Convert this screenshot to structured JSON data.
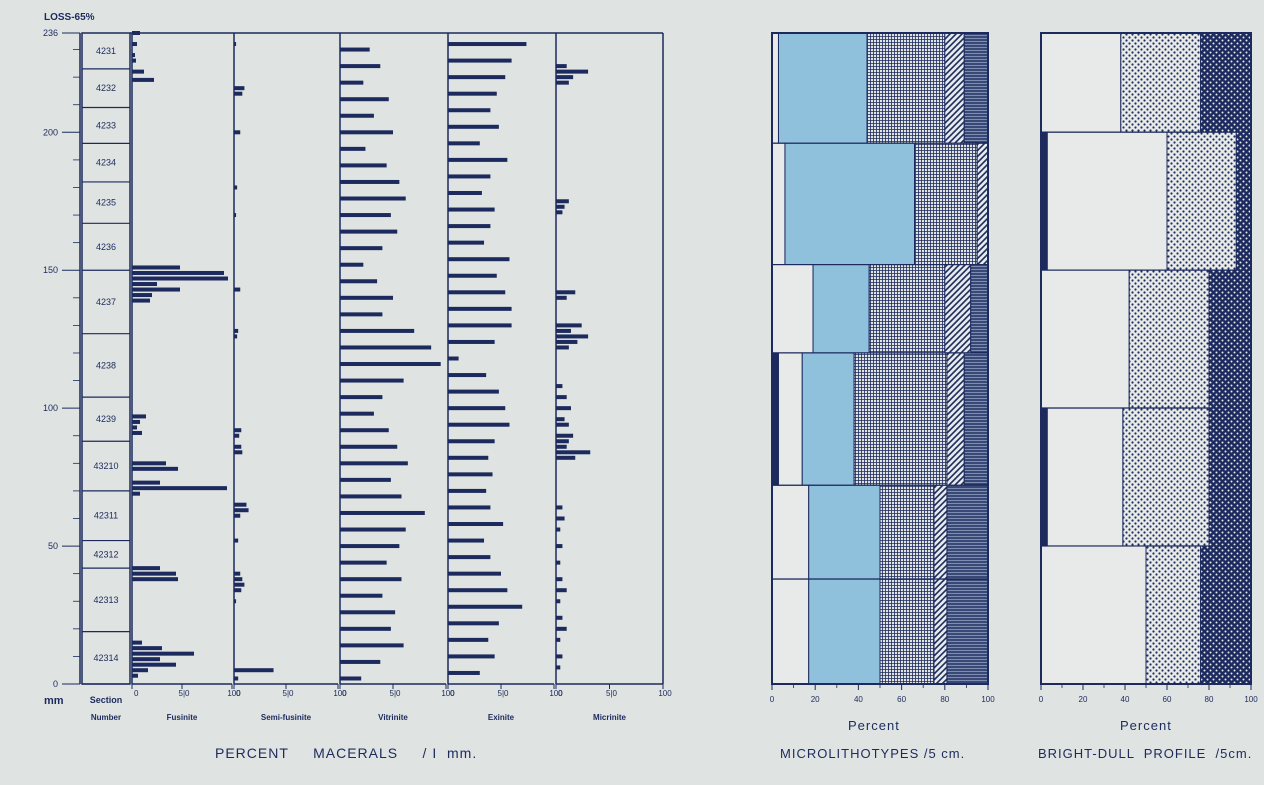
{
  "chart_data": {
    "type": "bar",
    "title": "",
    "header_label": "LOSS-65%",
    "depth_axis": {
      "unit": "mm",
      "min": 0,
      "max": 236,
      "ticks": [
        0,
        50,
        100,
        150,
        200,
        236
      ],
      "tick_labels": [
        "0",
        "50",
        "100",
        "150",
        "200",
        "236"
      ]
    },
    "section_column_label": [
      "Section",
      "Number"
    ],
    "sections": [
      {
        "id": "4231",
        "top": 236,
        "bottom": 223
      },
      {
        "id": "4232",
        "top": 223,
        "bottom": 209
      },
      {
        "id": "4233",
        "top": 209,
        "bottom": 196
      },
      {
        "id": "4234",
        "top": 196,
        "bottom": 182
      },
      {
        "id": "4235",
        "top": 182,
        "bottom": 167
      },
      {
        "id": "4236",
        "top": 167,
        "bottom": 150
      },
      {
        "id": "4237",
        "top": 150,
        "bottom": 127
      },
      {
        "id": "4238",
        "top": 127,
        "bottom": 104
      },
      {
        "id": "4239",
        "top": 104,
        "bottom": 88
      },
      {
        "id": "43210",
        "top": 88,
        "bottom": 70
      },
      {
        "id": "42311",
        "top": 70,
        "bottom": 52
      },
      {
        "id": "42312",
        "top": 52,
        "bottom": 42
      },
      {
        "id": "42313",
        "top": 42,
        "bottom": 19
      },
      {
        "id": "42314",
        "top": 19,
        "bottom": 0
      }
    ],
    "macerals": {
      "caption": "PERCENT     MACERALS     / I  mm.",
      "x_ticks": [
        0,
        50,
        100
      ],
      "tick_labels": [
        "0",
        "5|0",
        "100"
      ],
      "tracks": [
        {
          "name": "Fusinite",
          "depths": [
            236,
            232,
            228,
            226,
            222,
            219,
            151,
            149,
            147,
            145,
            143,
            141,
            139,
            97,
            95,
            93,
            91,
            80,
            78,
            73,
            71,
            69,
            42,
            40,
            38,
            15,
            13,
            11,
            9,
            7,
            5,
            3
          ],
          "values": [
            8,
            5,
            3,
            4,
            12,
            22,
            48,
            92,
            96,
            25,
            48,
            20,
            18,
            14,
            8,
            5,
            10,
            34,
            46,
            28,
            95,
            8,
            28,
            44,
            46,
            10,
            30,
            62,
            28,
            44,
            16,
            6
          ]
        },
        {
          "name": "Semi-fusinite",
          "depths": [
            232,
            216,
            214,
            200,
            180,
            170,
            143,
            128,
            126,
            92,
            90,
            86,
            84,
            65,
            63,
            61,
            52,
            40,
            38,
            36,
            34,
            30,
            5,
            2
          ],
          "values": [
            2,
            10,
            8,
            6,
            3,
            2,
            6,
            4,
            3,
            7,
            5,
            7,
            8,
            12,
            14,
            6,
            4,
            6,
            8,
            10,
            7,
            2,
            38,
            4
          ]
        },
        {
          "name": "Vitrinite",
          "depths": [
            230,
            224,
            218,
            212,
            206,
            200,
            194,
            188,
            182,
            176,
            170,
            164,
            158,
            152,
            146,
            140,
            134,
            128,
            122,
            116,
            110,
            104,
            98,
            92,
            86,
            80,
            74,
            68,
            62,
            56,
            50,
            44,
            38,
            32,
            26,
            20,
            14,
            8,
            2
          ],
          "values": [
            28,
            38,
            22,
            46,
            32,
            50,
            24,
            44,
            56,
            62,
            48,
            54,
            40,
            22,
            35,
            50,
            40,
            70,
            86,
            95,
            60,
            40,
            32,
            46,
            54,
            64,
            48,
            58,
            80,
            62,
            56,
            44,
            58,
            40,
            52,
            48,
            60,
            38,
            20
          ]
        },
        {
          "name": "Exinite",
          "depths": [
            232,
            226,
            220,
            214,
            208,
            202,
            196,
            190,
            184,
            178,
            172,
            166,
            160,
            154,
            148,
            142,
            136,
            130,
            124,
            118,
            112,
            106,
            100,
            94,
            88,
            82,
            76,
            70,
            64,
            58,
            52,
            46,
            40,
            34,
            28,
            22,
            16,
            10,
            4
          ],
          "values": [
            74,
            60,
            54,
            46,
            40,
            48,
            30,
            56,
            40,
            32,
            44,
            40,
            34,
            58,
            46,
            54,
            60,
            60,
            44,
            10,
            36,
            48,
            54,
            58,
            44,
            38,
            42,
            36,
            40,
            52,
            34,
            40,
            50,
            56,
            70,
            48,
            38,
            44,
            30
          ]
        },
        {
          "name": "Micrinite",
          "depths": [
            224,
            222,
            220,
            218,
            175,
            173,
            171,
            142,
            140,
            130,
            128,
            126,
            124,
            122,
            108,
            104,
            100,
            96,
            94,
            90,
            88,
            86,
            84,
            82,
            64,
            60,
            56,
            50,
            44,
            38,
            34,
            30,
            24,
            20,
            16,
            10,
            6
          ],
          "values": [
            10,
            30,
            16,
            12,
            12,
            8,
            6,
            18,
            10,
            24,
            14,
            30,
            20,
            12,
            6,
            10,
            14,
            8,
            12,
            16,
            12,
            10,
            32,
            18,
            6,
            8,
            4,
            6,
            4,
            6,
            10,
            4,
            6,
            10,
            4,
            6,
            4
          ]
        }
      ]
    },
    "microlithotypes": {
      "caption": "MICROLITHOTYPES /5 cm.",
      "x_label": "Percent",
      "x_ticks": [
        0,
        20,
        40,
        60,
        80,
        100
      ],
      "tick_labels": [
        "0",
        "20",
        "40",
        "60",
        "80",
        "100"
      ],
      "intervals": [
        {
          "top": 236,
          "bottom": 196,
          "boundaries": [
            0,
            3,
            44,
            80,
            89,
            100
          ]
        },
        {
          "top": 196,
          "bottom": 152,
          "boundaries": [
            0,
            6,
            66,
            95,
            100,
            100
          ]
        },
        {
          "top": 152,
          "bottom": 120,
          "boundaries": [
            0,
            19,
            45,
            80,
            92,
            100
          ]
        },
        {
          "top": 120,
          "bottom": 72,
          "boundaries": [
            3,
            14,
            38,
            81,
            89,
            100
          ]
        },
        {
          "top": 72,
          "bottom": 38,
          "boundaries": [
            0,
            17,
            50,
            75,
            81,
            100
          ]
        },
        {
          "top": 38,
          "bottom": 0,
          "boundaries": [
            0,
            17,
            50,
            75,
            81,
            100
          ]
        }
      ]
    },
    "bright_dull": {
      "caption": "BRIGHT-DULL  PROFILE  /5cm.",
      "x_label": "Percent",
      "x_ticks": [
        0,
        20,
        40,
        60,
        80,
        100
      ],
      "tick_labels": [
        "0",
        "20",
        "40",
        "60",
        "80",
        "100"
      ],
      "intervals": [
        {
          "top": 236,
          "bottom": 200,
          "boundaries": [
            0,
            0,
            38,
            76,
            100
          ]
        },
        {
          "top": 200,
          "bottom": 150,
          "boundaries": [
            0,
            3,
            60,
            93,
            100
          ]
        },
        {
          "top": 150,
          "bottom": 100,
          "boundaries": [
            0,
            0,
            42,
            80,
            100
          ]
        },
        {
          "top": 100,
          "bottom": 50,
          "boundaries": [
            0,
            3,
            39,
            80,
            100
          ]
        },
        {
          "top": 50,
          "bottom": 0,
          "boundaries": [
            0,
            0,
            50,
            76,
            100
          ]
        }
      ]
    },
    "colors": {
      "ink": "#1c2a5e",
      "blue": "#8fc0dc",
      "paper": "#e7eae8"
    }
  }
}
